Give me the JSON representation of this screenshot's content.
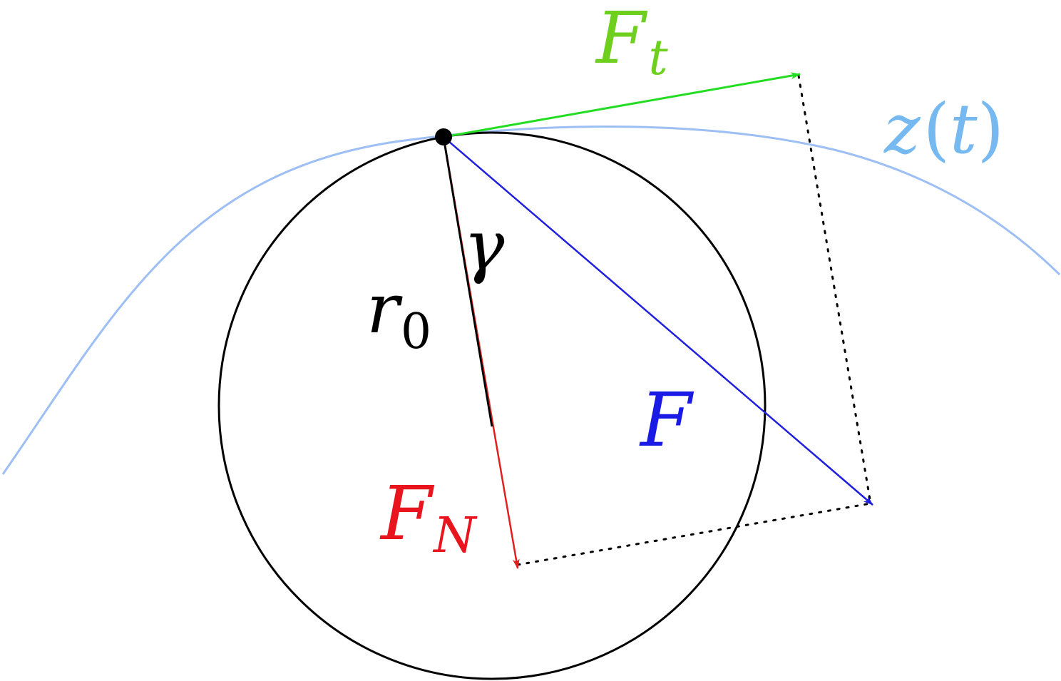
{
  "labels": {
    "tangential_force": {
      "base": "F",
      "sub": "t"
    },
    "curve": {
      "name": "z",
      "open": "(",
      "arg": "t",
      "close": ")"
    },
    "angle": "γ",
    "radius": {
      "base": "r",
      "sub": "0"
    },
    "force": "F",
    "normal_force": {
      "base": "F",
      "sub": "N"
    }
  },
  "colors": {
    "tangential_force": "#22dd22",
    "tangential_label": "#6fcf1f",
    "curve": "#9dbff4",
    "curve_label": "#76b9f0",
    "force": "#1f1fdd",
    "force_label": "#1a1ae6",
    "normal_force": "#e01f1f",
    "normal_label": "#e8141e",
    "circle": "#000000",
    "guide_lines": "#000000"
  }
}
